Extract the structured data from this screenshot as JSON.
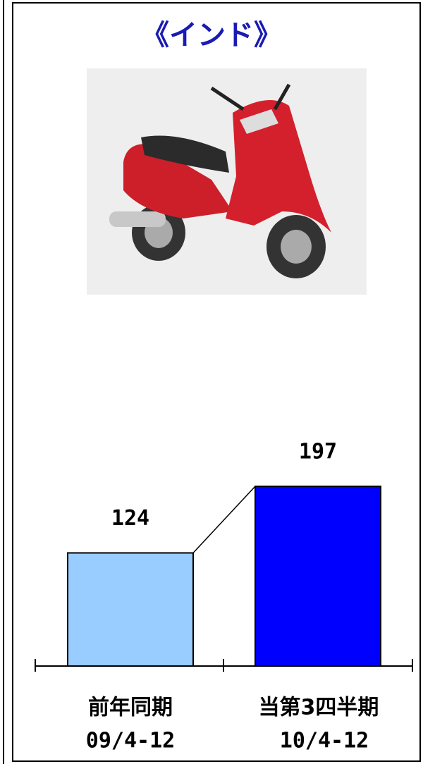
{
  "chart_data": {
    "type": "bar",
    "title": "《インド》",
    "categories": [
      "前年同期",
      "当第3四半期"
    ],
    "periods": [
      "09/4-12",
      "10/4-12"
    ],
    "values": [
      124,
      197
    ],
    "colors": [
      "#99ccff",
      "#0000ff"
    ]
  }
}
